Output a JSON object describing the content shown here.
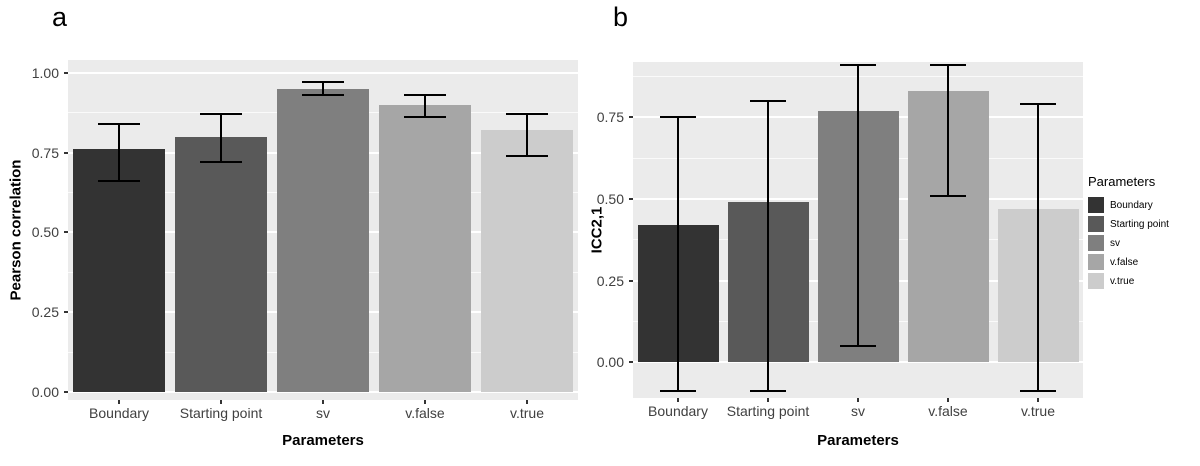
{
  "legend": {
    "title": "Parameters",
    "items": [
      {
        "label": "Boundary",
        "color": "#333333"
      },
      {
        "label": "Starting point",
        "color": "#595959"
      },
      {
        "label": "sv",
        "color": "#7f7f7f"
      },
      {
        "label": "v.false",
        "color": "#a6a6a6"
      },
      {
        "label": "v.true",
        "color": "#cccccc"
      }
    ]
  },
  "chart_data": [
    {
      "type": "bar",
      "panel_letter": "a",
      "title": "",
      "xlabel": "Parameters",
      "ylabel": "Pearson correlation",
      "categories": [
        "Boundary",
        "Starting point",
        "sv",
        "v.false",
        "v.true"
      ],
      "values": [
        0.76,
        0.8,
        0.95,
        0.9,
        0.82
      ],
      "error_low": [
        0.66,
        0.72,
        0.93,
        0.86,
        0.74
      ],
      "error_high": [
        0.84,
        0.87,
        0.97,
        0.93,
        0.87
      ],
      "yticks": [
        0,
        0.25,
        0.5,
        0.75,
        1.0
      ],
      "ytick_labels": [
        "0.00",
        "0.25",
        "0.50",
        "0.75",
        "1.00"
      ],
      "yminor": [
        0.125,
        0.375,
        0.625,
        0.875
      ],
      "ylim": [
        -0.025,
        1.04
      ],
      "grid": true,
      "legend_position": "right"
    },
    {
      "type": "bar",
      "panel_letter": "b",
      "title": "",
      "xlabel": "Parameters",
      "ylabel": "ICC2,1",
      "categories": [
        "Boundary",
        "Starting point",
        "sv",
        "v.false",
        "v.true"
      ],
      "values": [
        0.42,
        0.49,
        0.77,
        0.83,
        0.47
      ],
      "error_low": [
        -0.09,
        -0.09,
        0.05,
        0.51,
        -0.09
      ],
      "error_high": [
        0.75,
        0.8,
        0.91,
        0.91,
        0.79
      ],
      "yticks": [
        0,
        0.25,
        0.5,
        0.75
      ],
      "ytick_labels": [
        "0.00",
        "0.25",
        "0.50",
        "0.75"
      ],
      "yminor": [
        0.125,
        0.375,
        0.625,
        0.875
      ],
      "ylim": [
        -0.11,
        0.92
      ],
      "grid": true,
      "legend_position": "right"
    }
  ]
}
